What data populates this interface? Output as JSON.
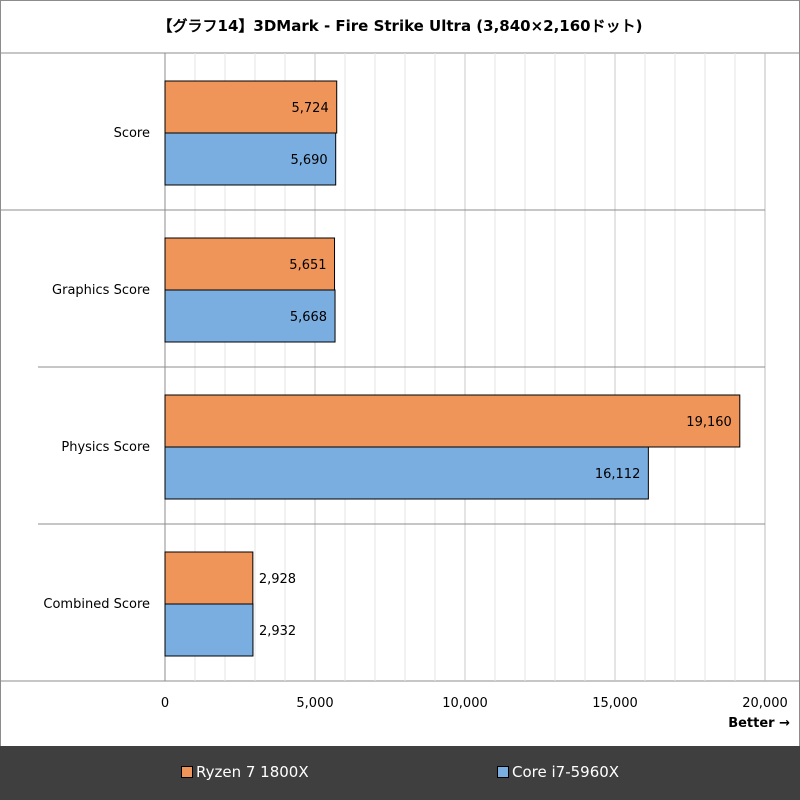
{
  "chart_data": {
    "type": "bar",
    "orientation": "horizontal",
    "title": "【グラフ14】3DMark - Fire Strike Ultra (3,840×2,160ドット)",
    "categories": [
      "Score",
      "Graphics Score",
      "Physics Score",
      "Combined Score"
    ],
    "series": [
      {
        "name": "Ryzen 7 1800X",
        "color": "#f0955a",
        "values": [
          5724,
          5651,
          19160,
          2928
        ]
      },
      {
        "name": "Core i7-5960X",
        "color": "#7aaee0",
        "values": [
          5690,
          5668,
          16112,
          2932
        ]
      }
    ],
    "value_labels": [
      [
        "5,724",
        "5,651",
        "19,160",
        "2,928"
      ],
      [
        "5,690",
        "5,668",
        "16,112",
        "2,932"
      ]
    ],
    "xlim": [
      0,
      20000
    ],
    "xticks": [
      0,
      5000,
      10000,
      15000,
      20000
    ],
    "xtick_labels": [
      "0",
      "5,000",
      "10,000",
      "15,000",
      "20,000"
    ],
    "axis_note": "Better →",
    "legend_position": "bottom",
    "grid": true
  }
}
